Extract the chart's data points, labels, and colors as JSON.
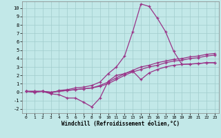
{
  "xlabel": "Windchill (Refroidissement éolien,°C)",
  "xlim": [
    -0.5,
    23.5
  ],
  "ylim": [
    -2.5,
    10.8
  ],
  "xticks": [
    0,
    1,
    2,
    3,
    4,
    5,
    6,
    7,
    8,
    9,
    10,
    11,
    12,
    13,
    14,
    15,
    16,
    17,
    18,
    19,
    20,
    21,
    22,
    23
  ],
  "yticks": [
    -2,
    -1,
    0,
    1,
    2,
    3,
    4,
    5,
    6,
    7,
    8,
    9,
    10
  ],
  "background_color": "#c2e8e8",
  "grid_color": "#a0cccc",
  "line_color": "#993388",
  "line1_x": [
    0,
    1,
    2,
    3,
    4,
    5,
    6,
    7,
    8,
    9,
    10,
    11,
    12,
    13,
    14,
    15,
    16,
    17,
    18,
    19,
    20,
    21,
    22,
    23
  ],
  "line1_y": [
    0.1,
    0.0,
    0.1,
    -0.2,
    -0.3,
    -0.7,
    -0.7,
    -1.2,
    -1.75,
    -0.7,
    1.3,
    2.0,
    2.2,
    2.5,
    1.5,
    2.3,
    2.7,
    3.0,
    3.2,
    3.3,
    3.35,
    3.4,
    3.5,
    3.5
  ],
  "line2_x": [
    0,
    1,
    2,
    3,
    4,
    5,
    6,
    7,
    8,
    9,
    10,
    11,
    12,
    13,
    14,
    15,
    16,
    17,
    18,
    19,
    20,
    21,
    22,
    23
  ],
  "line2_y": [
    0.1,
    0.0,
    0.1,
    -0.1,
    0.2,
    0.3,
    0.5,
    0.6,
    0.8,
    1.2,
    2.2,
    3.0,
    4.3,
    7.2,
    10.5,
    10.2,
    8.8,
    7.2,
    4.85,
    3.3,
    3.35,
    3.4,
    3.5,
    3.5
  ],
  "line3_x": [
    0,
    1,
    2,
    3,
    4,
    5,
    6,
    7,
    8,
    9,
    10,
    11,
    12,
    13,
    14,
    15,
    16,
    17,
    18,
    19,
    20,
    21,
    22,
    23
  ],
  "line3_y": [
    0.1,
    0.1,
    0.1,
    0.0,
    0.1,
    0.2,
    0.3,
    0.4,
    0.5,
    0.8,
    1.2,
    1.7,
    2.2,
    2.6,
    3.0,
    3.2,
    3.5,
    3.7,
    3.9,
    4.0,
    4.2,
    4.3,
    4.5,
    4.6
  ],
  "line4_x": [
    0,
    1,
    2,
    3,
    4,
    5,
    6,
    7,
    8,
    9,
    10,
    11,
    12,
    13,
    14,
    15,
    16,
    17,
    18,
    19,
    20,
    21,
    22,
    23
  ],
  "line4_y": [
    0.1,
    0.1,
    0.1,
    0.0,
    0.1,
    0.2,
    0.3,
    0.4,
    0.5,
    0.7,
    1.0,
    1.5,
    2.0,
    2.4,
    2.7,
    3.0,
    3.2,
    3.5,
    3.7,
    3.8,
    4.0,
    4.1,
    4.3,
    4.4
  ]
}
